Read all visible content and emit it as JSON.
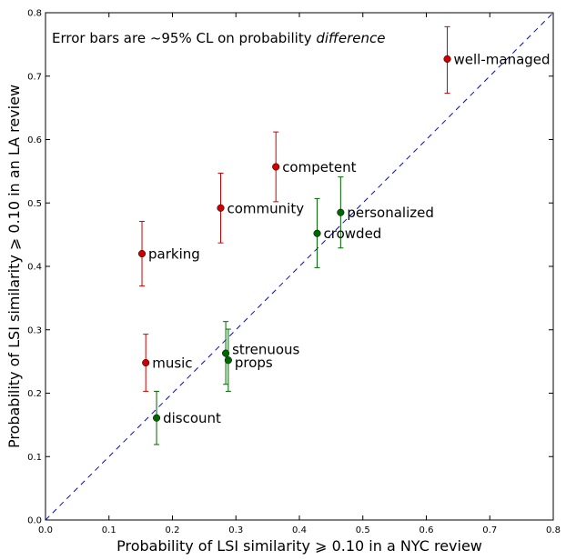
{
  "chart_data": {
    "type": "scatter",
    "title": "",
    "annotation": {
      "prefix": "Error bars are ~95% CL on probability ",
      "emphasis": "difference"
    },
    "xlabel": "Probability of LSI similarity ⩾ 0.10 in a NYC review",
    "ylabel": "Probability of LSI similarity ⩾ 0.10 in an LA review",
    "xlim": [
      0,
      0.8
    ],
    "ylim": [
      0,
      0.8
    ],
    "xticks": [
      "0.0",
      "0.1",
      "0.2",
      "0.3",
      "0.4",
      "0.5",
      "0.6",
      "0.7",
      "0.8"
    ],
    "yticks": [
      "0.0",
      "0.1",
      "0.2",
      "0.3",
      "0.4",
      "0.5",
      "0.6",
      "0.7",
      "0.8"
    ],
    "grid": false,
    "diagonal": {
      "from": [
        0,
        0
      ],
      "to": [
        0.8,
        0.8
      ],
      "color": "#0000ff",
      "style": "dashed"
    },
    "colors": {
      "la_higher": "#cc0000",
      "similar": "#006600"
    },
    "points": [
      {
        "label": "well-managed",
        "x": 0.633,
        "y": 0.727,
        "err_low": 0.673,
        "err_high": 0.778,
        "group": "la_higher"
      },
      {
        "label": "competent",
        "x": 0.363,
        "y": 0.557,
        "err_low": 0.502,
        "err_high": 0.612,
        "group": "la_higher"
      },
      {
        "label": "community",
        "x": 0.276,
        "y": 0.492,
        "err_low": 0.437,
        "err_high": 0.547,
        "group": "la_higher"
      },
      {
        "label": "parking",
        "x": 0.152,
        "y": 0.42,
        "err_low": 0.369,
        "err_high": 0.471,
        "group": "la_higher"
      },
      {
        "label": "music",
        "x": 0.158,
        "y": 0.248,
        "err_low": 0.203,
        "err_high": 0.293,
        "group": "la_higher"
      },
      {
        "label": "personalized",
        "x": 0.465,
        "y": 0.485,
        "err_low": 0.429,
        "err_high": 0.541,
        "group": "similar"
      },
      {
        "label": "crowded",
        "x": 0.428,
        "y": 0.452,
        "err_low": 0.398,
        "err_high": 0.507,
        "group": "similar"
      },
      {
        "label": "strenuous",
        "x": 0.284,
        "y": 0.263,
        "err_low": 0.214,
        "err_high": 0.313,
        "group": "similar"
      },
      {
        "label": "props",
        "x": 0.288,
        "y": 0.252,
        "err_low": 0.203,
        "err_high": 0.301,
        "group": "similar"
      },
      {
        "label": "discount",
        "x": 0.175,
        "y": 0.161,
        "err_low": 0.119,
        "err_high": 0.203,
        "group": "similar"
      }
    ]
  }
}
